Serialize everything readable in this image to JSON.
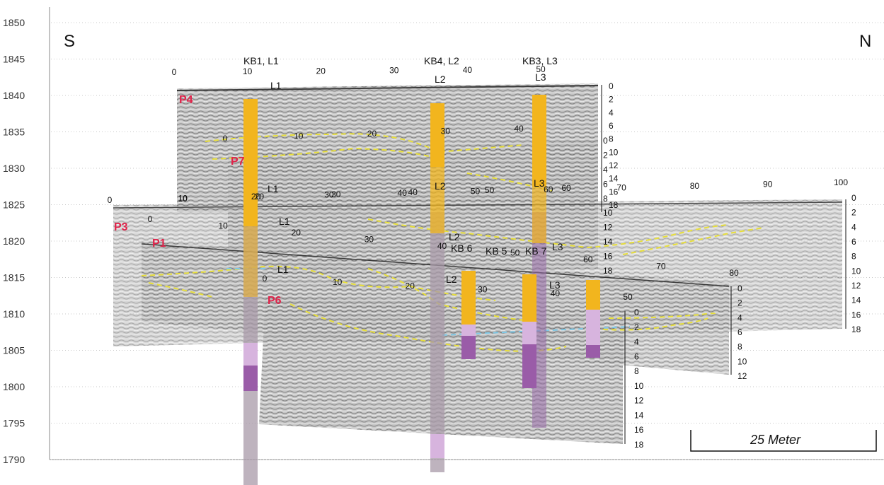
{
  "direction": {
    "left": "S",
    "right": "N"
  },
  "elevations": [
    "1850",
    "1845",
    "1840",
    "1835",
    "1830",
    "1825",
    "1820",
    "1815",
    "1810",
    "1805",
    "1800",
    "1795",
    "1790"
  ],
  "profiles": {
    "p4": {
      "label": "P4",
      "top": [
        "0",
        "10",
        "20",
        "30",
        "40",
        "50"
      ],
      "inner": [
        "0",
        "10",
        "20",
        "30",
        "40"
      ],
      "depth": [
        "0",
        "2",
        "4",
        "6",
        "8",
        "10",
        "12",
        "14",
        "16",
        "18"
      ]
    },
    "p7": {
      "label": "P7",
      "top": [
        "10",
        "20",
        "30",
        "40",
        "50",
        "60"
      ],
      "depth": [
        "0",
        "2",
        "4",
        "6",
        "8",
        "10",
        "12",
        "14",
        "16",
        "18"
      ]
    },
    "p3": {
      "label": "P3",
      "top": [
        "0",
        "10",
        "20",
        "30",
        "40",
        "50",
        "60",
        "70",
        "80",
        "90",
        "100"
      ],
      "depth": [
        "0",
        "2",
        "4",
        "6",
        "8",
        "10",
        "12",
        "14",
        "16",
        "18"
      ]
    },
    "p1": {
      "label": "P1",
      "top": [
        "0",
        "10",
        "20",
        "30",
        "40",
        "50",
        "60",
        "70",
        "80"
      ],
      "depth": [
        "0",
        "2",
        "4",
        "6",
        "8",
        "10",
        "12"
      ]
    },
    "p6": {
      "label": "P6",
      "top": [
        "0",
        "10",
        "20",
        "30",
        "40",
        "50"
      ],
      "depth": [
        "0",
        "2",
        "4",
        "6",
        "8",
        "10",
        "12",
        "14",
        "16",
        "18"
      ]
    }
  },
  "boreholes": {
    "kb1": "KB1, L1",
    "kb4": "KB4, L2",
    "kb3": "KB3, L3",
    "kb6": "KB 6",
    "kb5": "KB 5",
    "kb7": "KB 7"
  },
  "layer_labels": {
    "l1": "L1",
    "l2": "L2",
    "l3": "L3"
  },
  "scale_bar": "25 Meter",
  "colors": {
    "sand": "#f2b51e",
    "light_purple": "#d7b4de",
    "purple": "#9a5ca8",
    "marker": "#e0234a",
    "horizon": "#e8df3a",
    "water": "#7ec8e6"
  }
}
